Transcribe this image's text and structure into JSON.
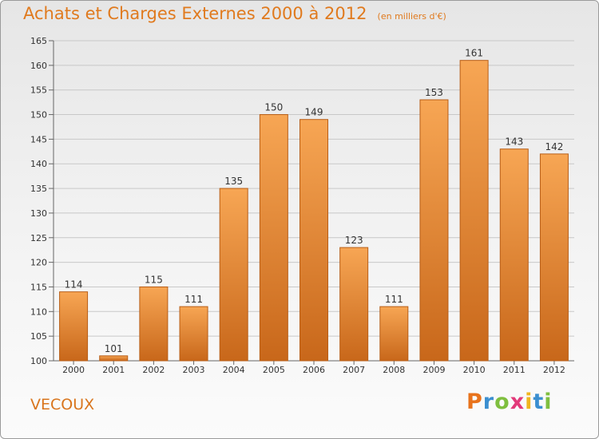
{
  "title": "Achats et Charges Externes 2000 à 2012",
  "subtitle": "(en milliers d'€)",
  "commune": "VECOUX",
  "brand": {
    "letters": [
      "P",
      "r",
      "o",
      "x",
      "i",
      "t",
      "i"
    ],
    "colors": [
      "#e8731c",
      "#3b8fd0",
      "#7fbf3f",
      "#e23a7a",
      "#f0b51e",
      "#3b8fd0",
      "#7fbf3f"
    ]
  },
  "colors": {
    "accent": "#e07a1e",
    "bar_top": "#f7a654",
    "bar_bottom": "#c8671a",
    "bar_edge": "#b85e17",
    "grid": "#c8c8c8"
  },
  "chart_data": {
    "type": "bar",
    "categories": [
      "2000",
      "2001",
      "2002",
      "2003",
      "2004",
      "2005",
      "2006",
      "2007",
      "2008",
      "2009",
      "2010",
      "2011",
      "2012"
    ],
    "values": [
      114,
      101,
      115,
      111,
      135,
      150,
      149,
      123,
      111,
      153,
      161,
      143,
      142
    ],
    "ylim": [
      100,
      165
    ],
    "yticks": [
      100,
      105,
      110,
      115,
      120,
      125,
      130,
      135,
      140,
      145,
      150,
      155,
      160,
      165
    ],
    "grid": true,
    "data_labels": true
  }
}
